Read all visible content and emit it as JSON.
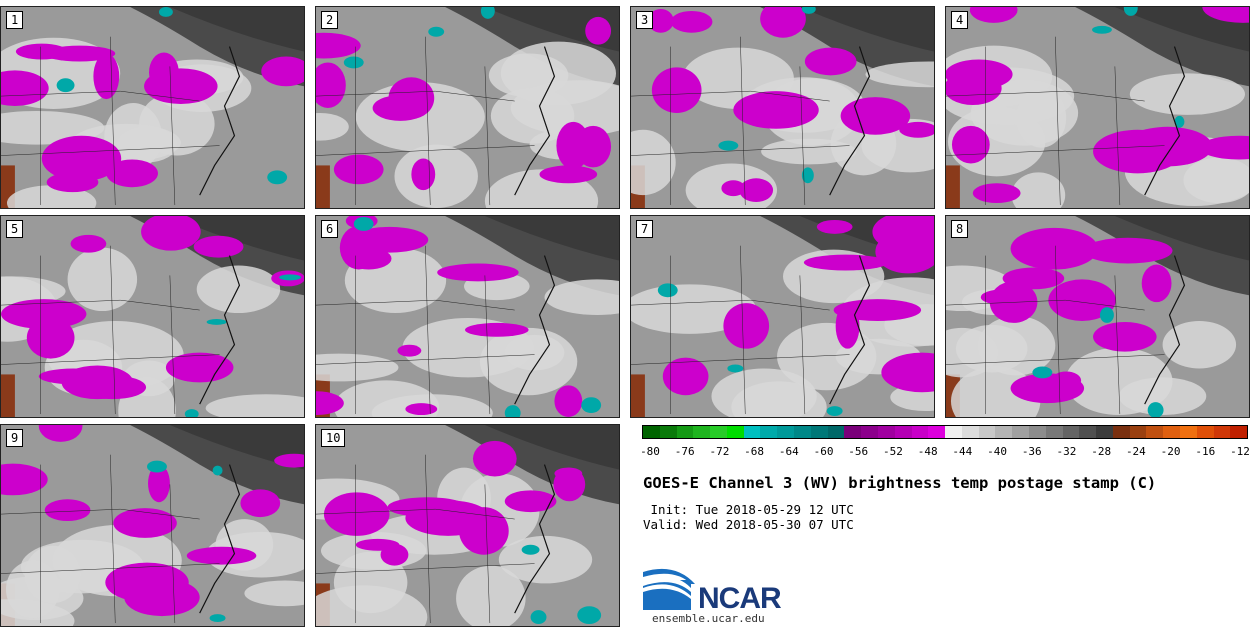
{
  "panels": [
    {
      "label": "1"
    },
    {
      "label": "2"
    },
    {
      "label": "3"
    },
    {
      "label": "4"
    },
    {
      "label": "5"
    },
    {
      "label": "6"
    },
    {
      "label": "7"
    },
    {
      "label": "8"
    },
    {
      "label": "9"
    },
    {
      "label": "10"
    }
  ],
  "colorbar": {
    "ticks": [
      "-80",
      "-76",
      "-72",
      "-68",
      "-64",
      "-60",
      "-56",
      "-52",
      "-48",
      "-44",
      "-40",
      "-36",
      "-32",
      "-28",
      "-24",
      "-20",
      "-16",
      "-12"
    ],
    "colors": [
      "#006400",
      "#0a7a0a",
      "#149a14",
      "#1eb41e",
      "#28cc28",
      "#00dd00",
      "#00c0c0",
      "#00aaaa",
      "#009a9a",
      "#008888",
      "#007878",
      "#006868",
      "#7a007a",
      "#8c008c",
      "#a000a0",
      "#b400b4",
      "#c800c8",
      "#dd00dd",
      "#f0f0f0",
      "#dcdcdc",
      "#c8c8c8",
      "#b4b4b4",
      "#a0a0a0",
      "#8c8c8c",
      "#787878",
      "#646464",
      "#505050",
      "#3c3c3c",
      "#7a3010",
      "#9a4010",
      "#c05010",
      "#e06010",
      "#f07010",
      "#e05008",
      "#d03808",
      "#c02000"
    ]
  },
  "title": "GOES-E Channel 3 (WV) brightness temp postage stamp (C)",
  "init_line": " Init: Tue 2018-05-29 12 UTC",
  "valid_line": "Valid: Wed 2018-05-30 07 UTC",
  "logo": {
    "name": "NCAR",
    "url": "ensemble.ucar.edu"
  }
}
